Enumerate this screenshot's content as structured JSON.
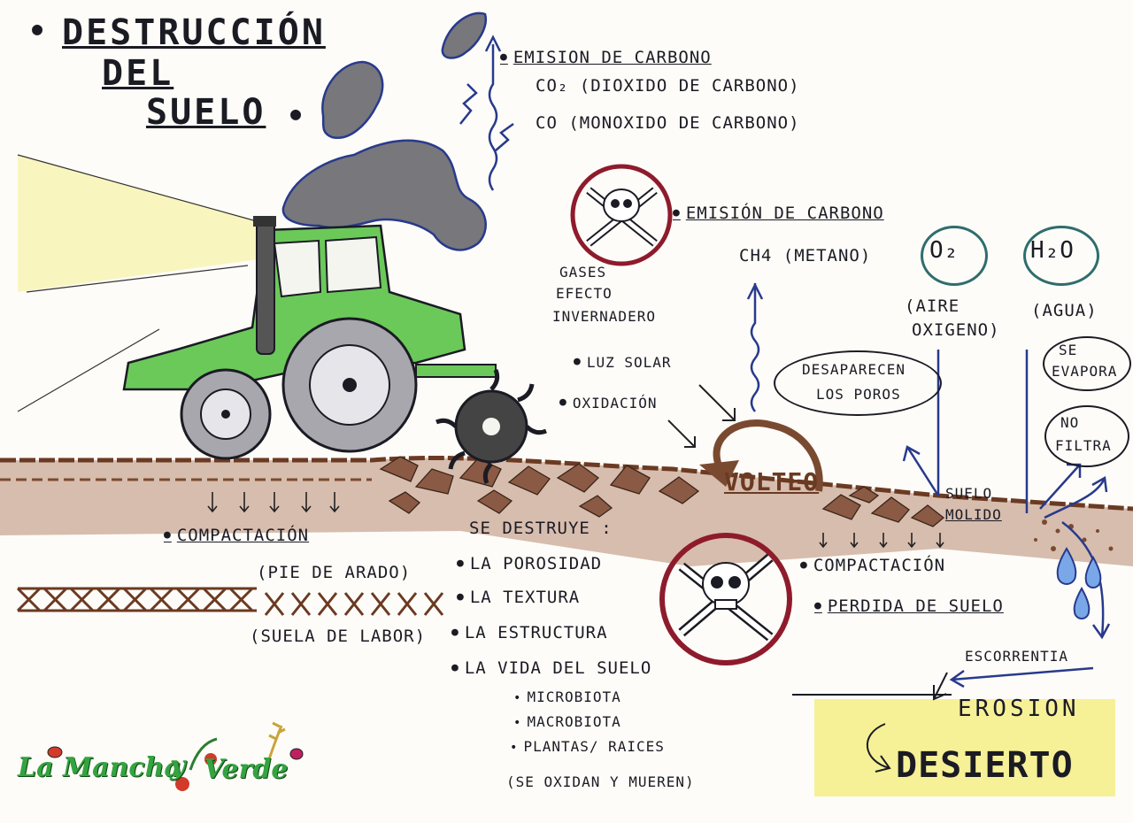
{
  "title": [
    "DESTRUCCIÓN",
    "DEL",
    "SUELO"
  ],
  "emissions_top": {
    "heading": "EMISION DE CARBONO",
    "co2": "CO₂  (DIOXIDO DE CARBONO)",
    "co": "CO   (MONOXIDO DE CARBONO)"
  },
  "greenhouse": [
    "GASES",
    "EFECTO",
    "INVERNADERO"
  ],
  "emissions_mid": {
    "heading": "EMISIÓN DE CARBONO",
    "ch4": "CH4 (METANO)"
  },
  "oxygen": {
    "symbol": "O₂",
    "label": [
      "(AIRE",
      "OXIGENO)"
    ]
  },
  "water": {
    "symbol": "H₂O",
    "label": "(AGUA)"
  },
  "water_notes": {
    "evapora": [
      "SE",
      "EVAPORA"
    ],
    "no_filtra": [
      "NO",
      "FILTRA"
    ]
  },
  "pores": [
    "DESAPARECEN",
    "LOS POROS"
  ],
  "process": {
    "luz_solar": "LUZ SOLAR",
    "oxidacion": "OXIDACIÓN",
    "volteo": "VOLTEO"
  },
  "suelo_molido": [
    "SUELO",
    "MOLIDO"
  ],
  "left_column": {
    "compactacion": "COMPACTACIÓN",
    "pie_arado": "(PIE DE ARADO)",
    "suela": "(SUELA DE LABOR)"
  },
  "destroys": {
    "heading": "SE DESTRUYE :",
    "items": [
      "LA POROSIDAD",
      "LA TEXTURA",
      "LA ESTRUCTURA",
      "LA VIDA DEL SUELO"
    ],
    "subitems": [
      "MICROBIOTA",
      "MACROBIOTA",
      "PLANTAS/ RAICES"
    ],
    "note": "(SE OXIDAN Y MUEREN)"
  },
  "right_column": {
    "compactacion": "COMPACTACIÓN",
    "perdida": "PERDIDA DE SUELO",
    "escorrentia": "ESCORRENTIA",
    "erosion": "EROSION",
    "desierto": "DESIERTO"
  },
  "logo": {
    "part1": "La Mancha",
    "part2": "y",
    "part3": "Verde"
  },
  "colors": {
    "ink": "#1b1b24",
    "tractor_green": "#5cbf5a",
    "soil": "#8a5a44",
    "smoke": "#6f6f74",
    "poison_red": "#8e1b2c",
    "arrow_blue": "#283a8c",
    "desert_yellow": "#f2ea8a",
    "light_beam": "#f4f0a0",
    "logo_green": "#34a340"
  },
  "icons": [
    "skull-crossbones-icon",
    "tractor-icon",
    "smoke-cloud-icon",
    "water-drop-icon",
    "ladybug-icon",
    "flower-icon",
    "wheat-icon"
  ]
}
